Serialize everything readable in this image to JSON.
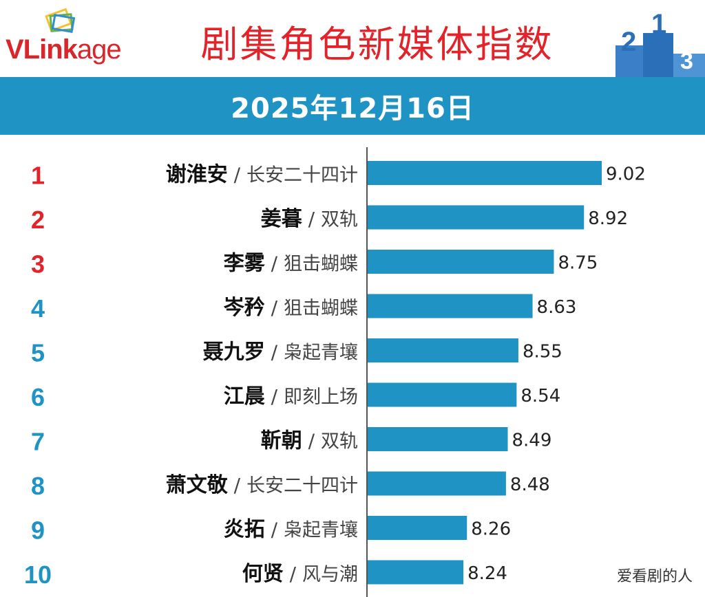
{
  "header": {
    "logo_text": "VLinkage",
    "title": "剧集角色新媒体指数",
    "date": "2025年12月16日",
    "podium_numbers": [
      "2",
      "1",
      "3"
    ]
  },
  "watermark": "爱看剧的人",
  "colors": {
    "bar": "#1f93c4",
    "title_red": "#e2242a",
    "rank_top3": "#e2242a",
    "rank_other": "#1f93c4",
    "date_bar": "#1f93c4"
  },
  "chart_data": {
    "type": "bar",
    "orientation": "horizontal",
    "title": "剧集角色新媒体指数",
    "subtitle": "2025年12月16日",
    "ranks": [
      "1",
      "2",
      "3",
      "4",
      "5",
      "6",
      "7",
      "8",
      "9",
      "10"
    ],
    "characters": [
      "谢淮安",
      "姜暮",
      "李雾",
      "岑矜",
      "聂九罗",
      "江晨",
      "靳朝",
      "萧文敬",
      "炎拓",
      "何贤"
    ],
    "dramas": [
      "长安二十四计",
      "双轨",
      "狙击蝴蝶",
      "狙击蝴蝶",
      "枭起青壤",
      "即刻上场",
      "双轨",
      "长安二十四计",
      "枭起青壤",
      "风与潮"
    ],
    "values": [
      9.02,
      8.92,
      8.75,
      8.63,
      8.55,
      8.54,
      8.49,
      8.48,
      8.26,
      8.24
    ],
    "value_labels": [
      "9.02",
      "8.92",
      "8.75",
      "8.63",
      "8.55",
      "8.54",
      "8.49",
      "8.48",
      "8.26",
      "8.24"
    ],
    "grid": false,
    "legend": "none"
  }
}
